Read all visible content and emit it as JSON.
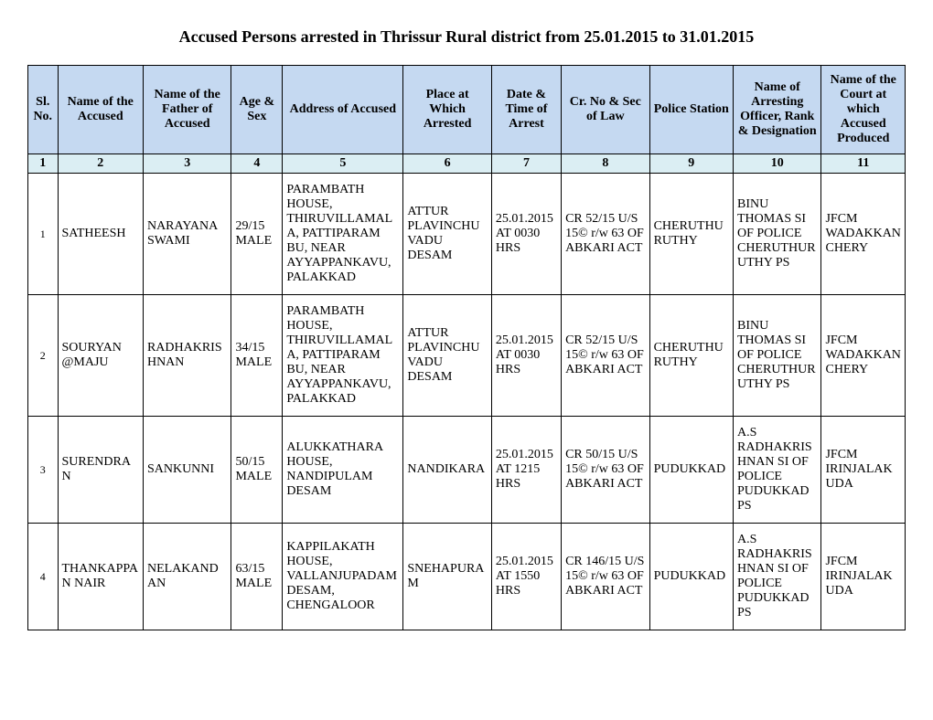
{
  "title": "Accused Persons arrested in   Thrissur Rural  district from  25.01.2015 to 31.01.2015",
  "headers": {
    "c1": "Sl. No.",
    "c2": "Name of the Accused",
    "c3": "Name of the Father of Accused",
    "c4": "Age & Sex",
    "c5": "Address of Accused",
    "c6": "Place at Which Arrested",
    "c7": "Date & Time of Arrest",
    "c8": "Cr. No & Sec of Law",
    "c9": "Police Station",
    "c10": "Name of Arresting Officer, Rank & Designation",
    "c11": "Name of the Court at which Accused Produced"
  },
  "colnums": {
    "c1": "1",
    "c2": "2",
    "c3": "3",
    "c4": "4",
    "c5": "5",
    "c6": "6",
    "c7": "7",
    "c8": "8",
    "c9": "9",
    "c10": "10",
    "c11": "11"
  },
  "rows": [
    {
      "sl": "1",
      "name": "SATHEESH",
      "father": "NARAYANA SWAMI",
      "age": "29/15 MALE",
      "address": "PARAMBATH HOUSE, THIRUVILLAMALA, PATTIPARAM BU, NEAR AYYAPPANKAVU, PALAKKAD",
      "place": "ATTUR PLAVINCHUVADU DESAM",
      "date": "25.01.2015 AT 0030 HRS",
      "crno": "CR 52/15 U/S 15© r/w 63 OF ABKARI ACT",
      "station": "CHERUTHURUTHY",
      "officer": "BINU THOMAS SI OF POLICE CHERUTHURUTHY PS",
      "court": "JFCM WADAKKANCHERY"
    },
    {
      "sl": "2",
      "name": "SOURYAN @MAJU",
      "father": "RADHAKRISHNAN",
      "age": "34/15 MALE",
      "address": "PARAMBATH HOUSE, THIRUVILLAMALA, PATTIPARAM BU, NEAR AYYAPPANKAVU, PALAKKAD",
      "place": "ATTUR PLAVINCHUVADU DESAM",
      "date": "25.01.2015 AT 0030 HRS",
      "crno": "CR 52/15 U/S 15© r/w 63 OF ABKARI ACT",
      "station": "CHERUTHURUTHY",
      "officer": "BINU THOMAS SI OF POLICE CHERUTHURUTHY PS",
      "court": "JFCM WADAKKANCHERY"
    },
    {
      "sl": "3",
      "name": "SURENDRAN",
      "father": "SANKUNNI",
      "age": "50/15 MALE",
      "address": "ALUKKATHARA HOUSE, NANDIPULAM DESAM",
      "place": "NANDIKARA",
      "date": "25.01.2015 AT 1215 HRS",
      "crno": "CR 50/15 U/S 15© r/w 63 OF ABKARI ACT",
      "station": "PUDUKKAD",
      "officer": "A.S RADHAKRISHNAN SI OF POLICE PUDUKKAD PS",
      "court": "JFCM IRINJALAKUDA"
    },
    {
      "sl": "4",
      "name": "THANKAPPAN NAIR",
      "father": "NELAKANDAN",
      "age": "63/15 MALE",
      "address": "KAPPILAKATH HOUSE, VALLANJUPADAM DESAM, CHENGALOOR",
      "place": "SNEHAPURAM",
      "date": "25.01.2015 AT 1550 HRS",
      "crno": "CR 146/15 U/S 15© r/w 63 OF ABKARI ACT",
      "station": "PUDUKKAD",
      "officer": "A.S RADHAKRISHNAN SI OF POLICE PUDUKKAD PS",
      "court": "JFCM IRINJALAKUDA"
    }
  ]
}
